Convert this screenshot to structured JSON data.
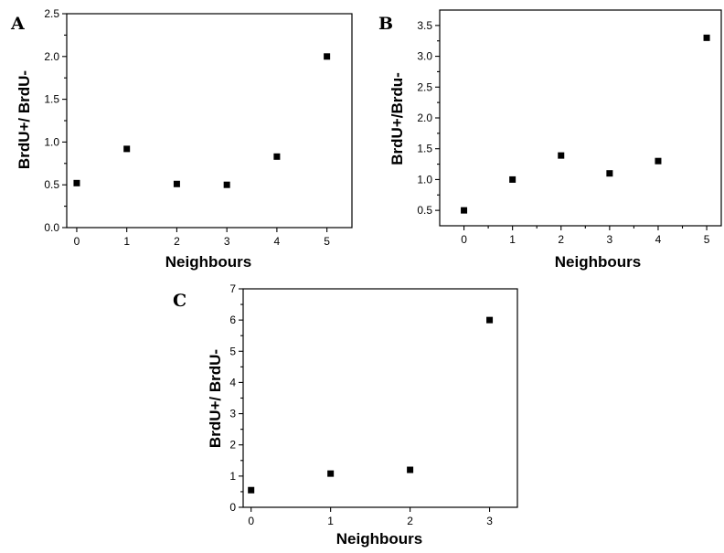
{
  "chart_data": [
    {
      "panel": "A",
      "type": "scatter",
      "xlabel": "Neighbours",
      "ylabel": "BrdU+/ BrdU-",
      "xlim": [
        -0.2,
        5.5
      ],
      "ylim": [
        0,
        2.5
      ],
      "xticks": [
        0,
        1,
        2,
        3,
        4,
        5
      ],
      "yticks": [
        0.0,
        0.5,
        1.0,
        1.5,
        2.0,
        2.5
      ],
      "ytick_labels": [
        "0.0",
        "0.5",
        "1.0",
        "1.5",
        "2.0",
        "2.5"
      ],
      "x": [
        0,
        1,
        2,
        3,
        4,
        5
      ],
      "y": [
        0.52,
        0.92,
        0.51,
        0.5,
        0.83,
        2.0
      ]
    },
    {
      "panel": "B",
      "type": "scatter",
      "xlabel": "Neighbours",
      "ylabel": "BrdU+/Brdu-",
      "xlim": [
        -0.5,
        5.3
      ],
      "ylim": [
        0.25,
        3.75
      ],
      "xticks": [
        0,
        1,
        2,
        3,
        4,
        5
      ],
      "yticks": [
        0.5,
        1.0,
        1.5,
        2.0,
        2.5,
        3.0,
        3.5
      ],
      "ytick_labels": [
        "0.5",
        "1.0",
        "1.5",
        "2.0",
        "2.5",
        "3.0",
        "3.5"
      ],
      "x": [
        0,
        1,
        2,
        3,
        4,
        5
      ],
      "y": [
        0.5,
        1.0,
        1.39,
        1.1,
        1.3,
        3.3
      ]
    },
    {
      "panel": "C",
      "type": "scatter",
      "xlabel": "Neighbours",
      "ylabel": "BrdU+/ BrdU-",
      "xlim": [
        -0.1,
        3.35
      ],
      "ylim": [
        0,
        7
      ],
      "xticks": [
        0,
        1,
        2,
        3
      ],
      "yticks": [
        0,
        1,
        2,
        3,
        4,
        5,
        6,
        7
      ],
      "ytick_labels": [
        "0",
        "1",
        "2",
        "3",
        "4",
        "5",
        "6",
        "7"
      ],
      "x": [
        0,
        1,
        2,
        3
      ],
      "y": [
        0.55,
        1.08,
        1.2,
        6.0
      ]
    }
  ]
}
